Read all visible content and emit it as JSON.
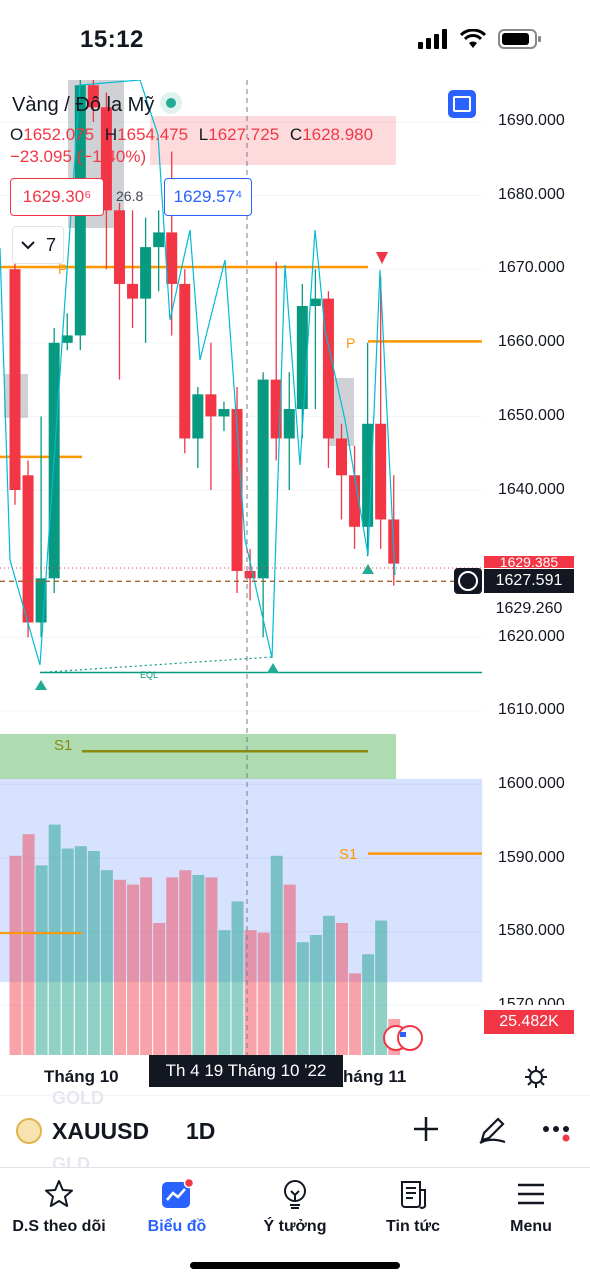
{
  "status_bar": {
    "time": "15:12"
  },
  "chart": {
    "title": "Vàng / Đô la Mỹ",
    "ohlc": {
      "o_key": "O",
      "o": "1652.075",
      "h_key": "H",
      "h": "1654.475",
      "l_key": "L",
      "l": "1627.725",
      "c_key": "C",
      "c": "1628.980"
    },
    "change": "−23.095 (−1.40%)",
    "sell_price": "1629.30⁶",
    "spread": "26.8",
    "buy_price": "1629.57⁴",
    "collapse_count": "7",
    "price_axis": [
      "1690.000",
      "1680.000",
      "1670.000",
      "1660.000",
      "1650.000",
      "1640.000",
      "1620.000",
      "1610.000",
      "1600.000",
      "1590.000",
      "1580.000",
      "1570.000"
    ],
    "last_price_hidden": "1629.385",
    "crosshair_price": "1627.591",
    "crosshair_price_below": "1629.260",
    "volume_tag": "25.482K",
    "eql_label": "EQL",
    "s1_label": "S1",
    "p_label": "P",
    "time_axis": {
      "month1": "Tháng 10",
      "crosshair_date": "Th 4 19 Tháng 10 '22",
      "month2": "háng 11"
    },
    "colors": {
      "up": "#089981",
      "down": "#f23645",
      "pivot": "#ff9800",
      "s1_olive": "#8a8a12",
      "accent": "#2962ff"
    }
  },
  "chart_data": {
    "type": "candlestick",
    "ylim": [
      1565,
      1695
    ],
    "candles": [
      {
        "o": 1670,
        "h": 1672,
        "l": 1638,
        "c": 1640
      },
      {
        "o": 1642,
        "h": 1644,
        "l": 1620,
        "c": 1622
      },
      {
        "o": 1622,
        "h": 1650,
        "l": 1620,
        "c": 1628
      },
      {
        "o": 1628,
        "h": 1662,
        "l": 1626,
        "c": 1660
      },
      {
        "o": 1660,
        "h": 1664,
        "l": 1659,
        "c": 1661
      },
      {
        "o": 1661,
        "h": 1696,
        "l": 1659,
        "c": 1695
      },
      {
        "o": 1695,
        "h": 1697,
        "l": 1690,
        "c": 1692
      },
      {
        "o": 1692,
        "h": 1694,
        "l": 1670,
        "c": 1678
      },
      {
        "o": 1678,
        "h": 1679,
        "l": 1655,
        "c": 1668
      },
      {
        "o": 1668,
        "h": 1678,
        "l": 1662,
        "c": 1666
      },
      {
        "o": 1666,
        "h": 1677,
        "l": 1660,
        "c": 1673
      },
      {
        "o": 1673,
        "h": 1678,
        "l": 1667,
        "c": 1675
      },
      {
        "o": 1675,
        "h": 1686,
        "l": 1661,
        "c": 1668
      },
      {
        "o": 1668,
        "h": 1670,
        "l": 1645,
        "c": 1647
      },
      {
        "o": 1647,
        "h": 1654,
        "l": 1643,
        "c": 1653
      },
      {
        "o": 1653,
        "h": 1660,
        "l": 1640,
        "c": 1650
      },
      {
        "o": 1650,
        "h": 1652,
        "l": 1648,
        "c": 1651
      },
      {
        "o": 1651,
        "h": 1654,
        "l": 1626,
        "c": 1629
      },
      {
        "o": 1629,
        "h": 1632,
        "l": 1625,
        "c": 1628
      },
      {
        "o": 1628,
        "h": 1656,
        "l": 1620,
        "c": 1655
      },
      {
        "o": 1655,
        "h": 1671,
        "l": 1644,
        "c": 1647
      },
      {
        "o": 1647,
        "h": 1656,
        "l": 1640,
        "c": 1651
      },
      {
        "o": 1651,
        "h": 1668,
        "l": 1647,
        "c": 1665
      },
      {
        "o": 1665,
        "h": 1670,
        "l": 1651,
        "c": 1666
      },
      {
        "o": 1666,
        "h": 1667,
        "l": 1643,
        "c": 1647
      },
      {
        "o": 1647,
        "h": 1649,
        "l": 1636,
        "c": 1642
      },
      {
        "o": 1642,
        "h": 1646,
        "l": 1632,
        "c": 1635
      },
      {
        "o": 1635,
        "h": 1660,
        "l": 1631,
        "c": 1649
      },
      {
        "o": 1649,
        "h": 1669,
        "l": 1632,
        "c": 1636
      },
      {
        "o": 1636,
        "h": 1642,
        "l": 1627,
        "c": 1630
      }
    ],
    "volume": [
      {
        "v": 0.83,
        "dir": "down"
      },
      {
        "v": 0.92,
        "dir": "down"
      },
      {
        "v": 0.79,
        "dir": "up"
      },
      {
        "v": 0.96,
        "dir": "up"
      },
      {
        "v": 0.86,
        "dir": "up"
      },
      {
        "v": 0.87,
        "dir": "up"
      },
      {
        "v": 0.85,
        "dir": "up"
      },
      {
        "v": 0.77,
        "dir": "up"
      },
      {
        "v": 0.73,
        "dir": "down"
      },
      {
        "v": 0.71,
        "dir": "down"
      },
      {
        "v": 0.74,
        "dir": "down"
      },
      {
        "v": 0.55,
        "dir": "down"
      },
      {
        "v": 0.74,
        "dir": "down"
      },
      {
        "v": 0.77,
        "dir": "down"
      },
      {
        "v": 0.75,
        "dir": "up"
      },
      {
        "v": 0.74,
        "dir": "down"
      },
      {
        "v": 0.52,
        "dir": "up"
      },
      {
        "v": 0.64,
        "dir": "up"
      },
      {
        "v": 0.52,
        "dir": "down"
      },
      {
        "v": 0.51,
        "dir": "down"
      },
      {
        "v": 0.83,
        "dir": "up"
      },
      {
        "v": 0.71,
        "dir": "down"
      },
      {
        "v": 0.47,
        "dir": "up"
      },
      {
        "v": 0.5,
        "dir": "up"
      },
      {
        "v": 0.58,
        "dir": "up"
      },
      {
        "v": 0.55,
        "dir": "down"
      },
      {
        "v": 0.34,
        "dir": "down"
      },
      {
        "v": 0.42,
        "dir": "up"
      },
      {
        "v": 0.56,
        "dir": "up"
      },
      {
        "v": 0.15,
        "dir": "down"
      }
    ],
    "levels": {
      "crosshair_price": 1627.591,
      "eql": 1615.2,
      "pivot_left": 1670.3,
      "pivot_right": 1660.2,
      "orange_left": 1644.5,
      "s1_left": 1604.5,
      "s1_right": 1590.6,
      "orange_volume": 1579.8
    }
  },
  "symbol_bar": {
    "symbol": "XAUUSD",
    "interval": "1D",
    "ghost_top": "GOLD",
    "ghost_bottom": "GLD"
  },
  "tabs": [
    {
      "label": "D.S theo dõi"
    },
    {
      "label": "Biểu đồ"
    },
    {
      "label": "Ý tưởng"
    },
    {
      "label": "Tin tức"
    },
    {
      "label": "Menu"
    }
  ]
}
